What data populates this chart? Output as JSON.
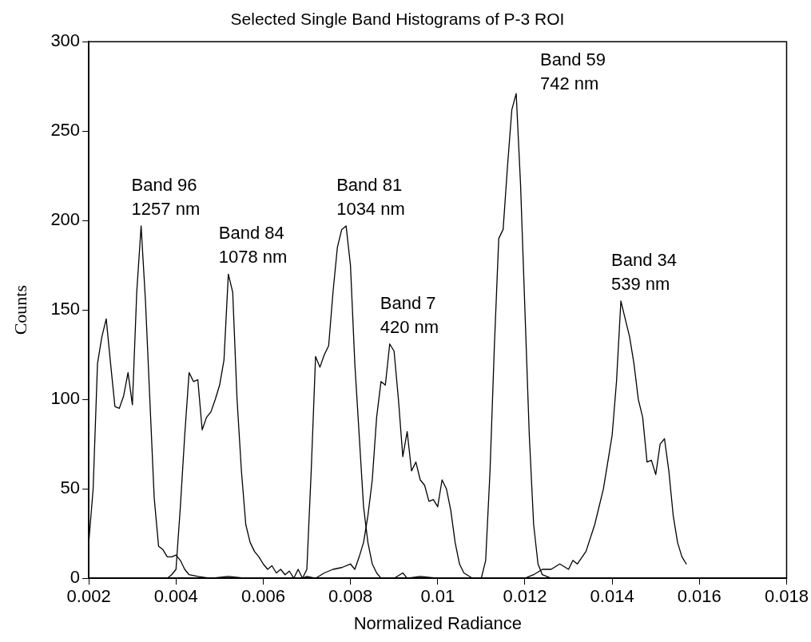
{
  "chart_data": {
    "type": "line",
    "title": "Selected Single Band Histograms of P-3 ROI",
    "xlabel": "Normalized Radiance",
    "ylabel": "Counts",
    "xlim": [
      0.002,
      0.018
    ],
    "xticks": [
      0.002,
      0.004,
      0.006,
      0.008,
      0.01,
      0.012,
      0.014,
      0.016,
      0.018
    ],
    "ylim": [
      0,
      300
    ],
    "yticks": [
      0,
      50,
      100,
      150,
      200,
      250,
      300
    ],
    "grid": false,
    "legend": false,
    "marker": "none",
    "line_style": "solid",
    "series": [
      {
        "name": "Band 96 1257 nm",
        "color": "#000000",
        "x": [
          0.002,
          0.0021,
          0.0022,
          0.0023,
          0.0024,
          0.0025,
          0.0026,
          0.0027,
          0.0028,
          0.0029,
          0.003,
          0.0031,
          0.0032,
          0.0033,
          0.0034,
          0.0035,
          0.0036,
          0.0037,
          0.0038,
          0.0039,
          0.004,
          0.0041,
          0.0042,
          0.0043,
          0.0045,
          0.0048,
          0.0052,
          0.0056,
          0.006
        ],
        "values": [
          20,
          50,
          120,
          135,
          145,
          120,
          96,
          95,
          102,
          115,
          97,
          160,
          197,
          155,
          100,
          45,
          18,
          16,
          12,
          12,
          13,
          10,
          5,
          2,
          1,
          0,
          1,
          0,
          0
        ]
      },
      {
        "name": "Band 84 1078 nm",
        "color": "#000000",
        "x": [
          0.0038,
          0.0039,
          0.004,
          0.0041,
          0.0042,
          0.0043,
          0.0044,
          0.0045,
          0.0046,
          0.0047,
          0.0048,
          0.0049,
          0.005,
          0.0051,
          0.0052,
          0.0053,
          0.0054,
          0.0055,
          0.0056,
          0.0057,
          0.0058,
          0.0059,
          0.006,
          0.0061,
          0.0062,
          0.0063,
          0.0064,
          0.0065,
          0.0066,
          0.0067,
          0.0068,
          0.0069,
          0.007,
          0.0072
        ],
        "values": [
          0,
          2,
          5,
          40,
          80,
          115,
          110,
          111,
          83,
          90,
          93,
          100,
          108,
          122,
          170,
          160,
          100,
          60,
          30,
          20,
          15,
          12,
          8,
          5,
          7,
          3,
          5,
          2,
          4,
          0,
          5,
          0,
          1,
          0
        ]
      },
      {
        "name": "Band 81 1034 nm",
        "color": "#000000",
        "x": [
          0.0069,
          0.007,
          0.0071,
          0.0072,
          0.0073,
          0.0074,
          0.0075,
          0.0076,
          0.0077,
          0.0078,
          0.0079,
          0.008,
          0.0081,
          0.0082,
          0.0083,
          0.0084,
          0.0085,
          0.0086,
          0.0087,
          0.009,
          0.0092,
          0.0093,
          0.0096,
          0.01
        ],
        "values": [
          0,
          5,
          60,
          124,
          118,
          125,
          130,
          160,
          185,
          195,
          197,
          175,
          120,
          80,
          40,
          20,
          8,
          3,
          0,
          0,
          3,
          0,
          1,
          0
        ]
      },
      {
        "name": "Band 7 420 nm",
        "color": "#000000",
        "x": [
          0.0072,
          0.0074,
          0.0076,
          0.0078,
          0.008,
          0.0081,
          0.0082,
          0.0083,
          0.0084,
          0.0085,
          0.0086,
          0.0087,
          0.0088,
          0.0089,
          0.009,
          0.0091,
          0.0092,
          0.0093,
          0.0094,
          0.0095,
          0.0096,
          0.0097,
          0.0098,
          0.0099,
          0.01,
          0.0101,
          0.0102,
          0.0103,
          0.0104,
          0.0105,
          0.0106,
          0.0108,
          0.0112
        ],
        "values": [
          0,
          3,
          5,
          6,
          8,
          5,
          12,
          20,
          35,
          55,
          90,
          110,
          108,
          131,
          127,
          100,
          68,
          82,
          60,
          65,
          55,
          52,
          43,
          44,
          40,
          55,
          50,
          38,
          20,
          8,
          3,
          0,
          0
        ]
      },
      {
        "name": "Band 59 742 nm",
        "color": "#000000",
        "x": [
          0.011,
          0.0111,
          0.0112,
          0.0113,
          0.0114,
          0.0115,
          0.0116,
          0.0117,
          0.0118,
          0.0119,
          0.012,
          0.0121,
          0.0122,
          0.0123,
          0.0124,
          0.0126
        ],
        "values": [
          0,
          10,
          60,
          130,
          190,
          195,
          230,
          262,
          271,
          220,
          150,
          80,
          30,
          8,
          2,
          0
        ]
      },
      {
        "name": "Band 34 539 nm",
        "color": "#000000",
        "x": [
          0.012,
          0.0122,
          0.0124,
          0.0126,
          0.0128,
          0.013,
          0.0131,
          0.0132,
          0.0134,
          0.0136,
          0.0138,
          0.014,
          0.0141,
          0.0142,
          0.0143,
          0.0144,
          0.0145,
          0.0146,
          0.0147,
          0.0148,
          0.0149,
          0.015,
          0.0151,
          0.0152,
          0.0153,
          0.0154,
          0.0155,
          0.0156,
          0.0157
        ],
        "values": [
          0,
          2,
          5,
          5,
          8,
          5,
          10,
          8,
          15,
          30,
          50,
          80,
          110,
          155,
          145,
          135,
          120,
          100,
          90,
          65,
          66,
          58,
          75,
          78,
          60,
          35,
          20,
          12,
          8
        ]
      }
    ]
  }
}
